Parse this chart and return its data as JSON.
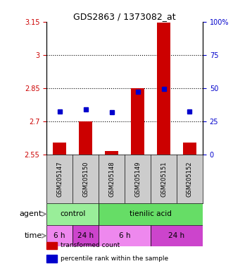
{
  "title": "GDS2863 / 1373082_at",
  "samples": [
    "GSM205147",
    "GSM205150",
    "GSM205148",
    "GSM205149",
    "GSM205151",
    "GSM205152"
  ],
  "bar_values": [
    2.605,
    2.7,
    2.565,
    2.85,
    3.145,
    2.605
  ],
  "bar_bottom": 2.55,
  "percentile_values": [
    2.745,
    2.755,
    2.74,
    2.835,
    2.845,
    2.745
  ],
  "ylim_left": [
    2.55,
    3.15
  ],
  "ylim_right": [
    0,
    100
  ],
  "yticks_left": [
    2.55,
    2.7,
    2.85,
    3.0,
    3.15
  ],
  "yticks_left_labels": [
    "2.55",
    "2.7",
    "2.85",
    "3",
    "3.15"
  ],
  "yticks_right": [
    0,
    25,
    50,
    75,
    100
  ],
  "yticks_right_labels": [
    "0",
    "25",
    "50",
    "75",
    "100%"
  ],
  "hlines": [
    2.7,
    2.85,
    3.0
  ],
  "bar_color": "#cc0000",
  "dot_color": "#0000cc",
  "agent_groups": [
    {
      "label": "control",
      "start": 0,
      "end": 2,
      "color": "#99ee99"
    },
    {
      "label": "tienilic acid",
      "start": 2,
      "end": 6,
      "color": "#66dd66"
    }
  ],
  "time_groups": [
    {
      "label": "6 h",
      "start": 0,
      "end": 1,
      "color": "#ee88ee"
    },
    {
      "label": "24 h",
      "start": 1,
      "end": 2,
      "color": "#cc44cc"
    },
    {
      "label": "6 h",
      "start": 2,
      "end": 4,
      "color": "#ee88ee"
    },
    {
      "label": "24 h",
      "start": 4,
      "end": 6,
      "color": "#cc44cc"
    }
  ],
  "legend_items": [
    {
      "color": "#cc0000",
      "label": "transformed count"
    },
    {
      "color": "#0000cc",
      "label": "percentile rank within the sample"
    }
  ],
  "left_axis_color": "#cc0000",
  "right_axis_color": "#0000cc",
  "sample_box_color": "#cccccc",
  "agent_label": "agent",
  "time_label": "time",
  "arrow_color": "#888888",
  "bar_width": 0.5
}
